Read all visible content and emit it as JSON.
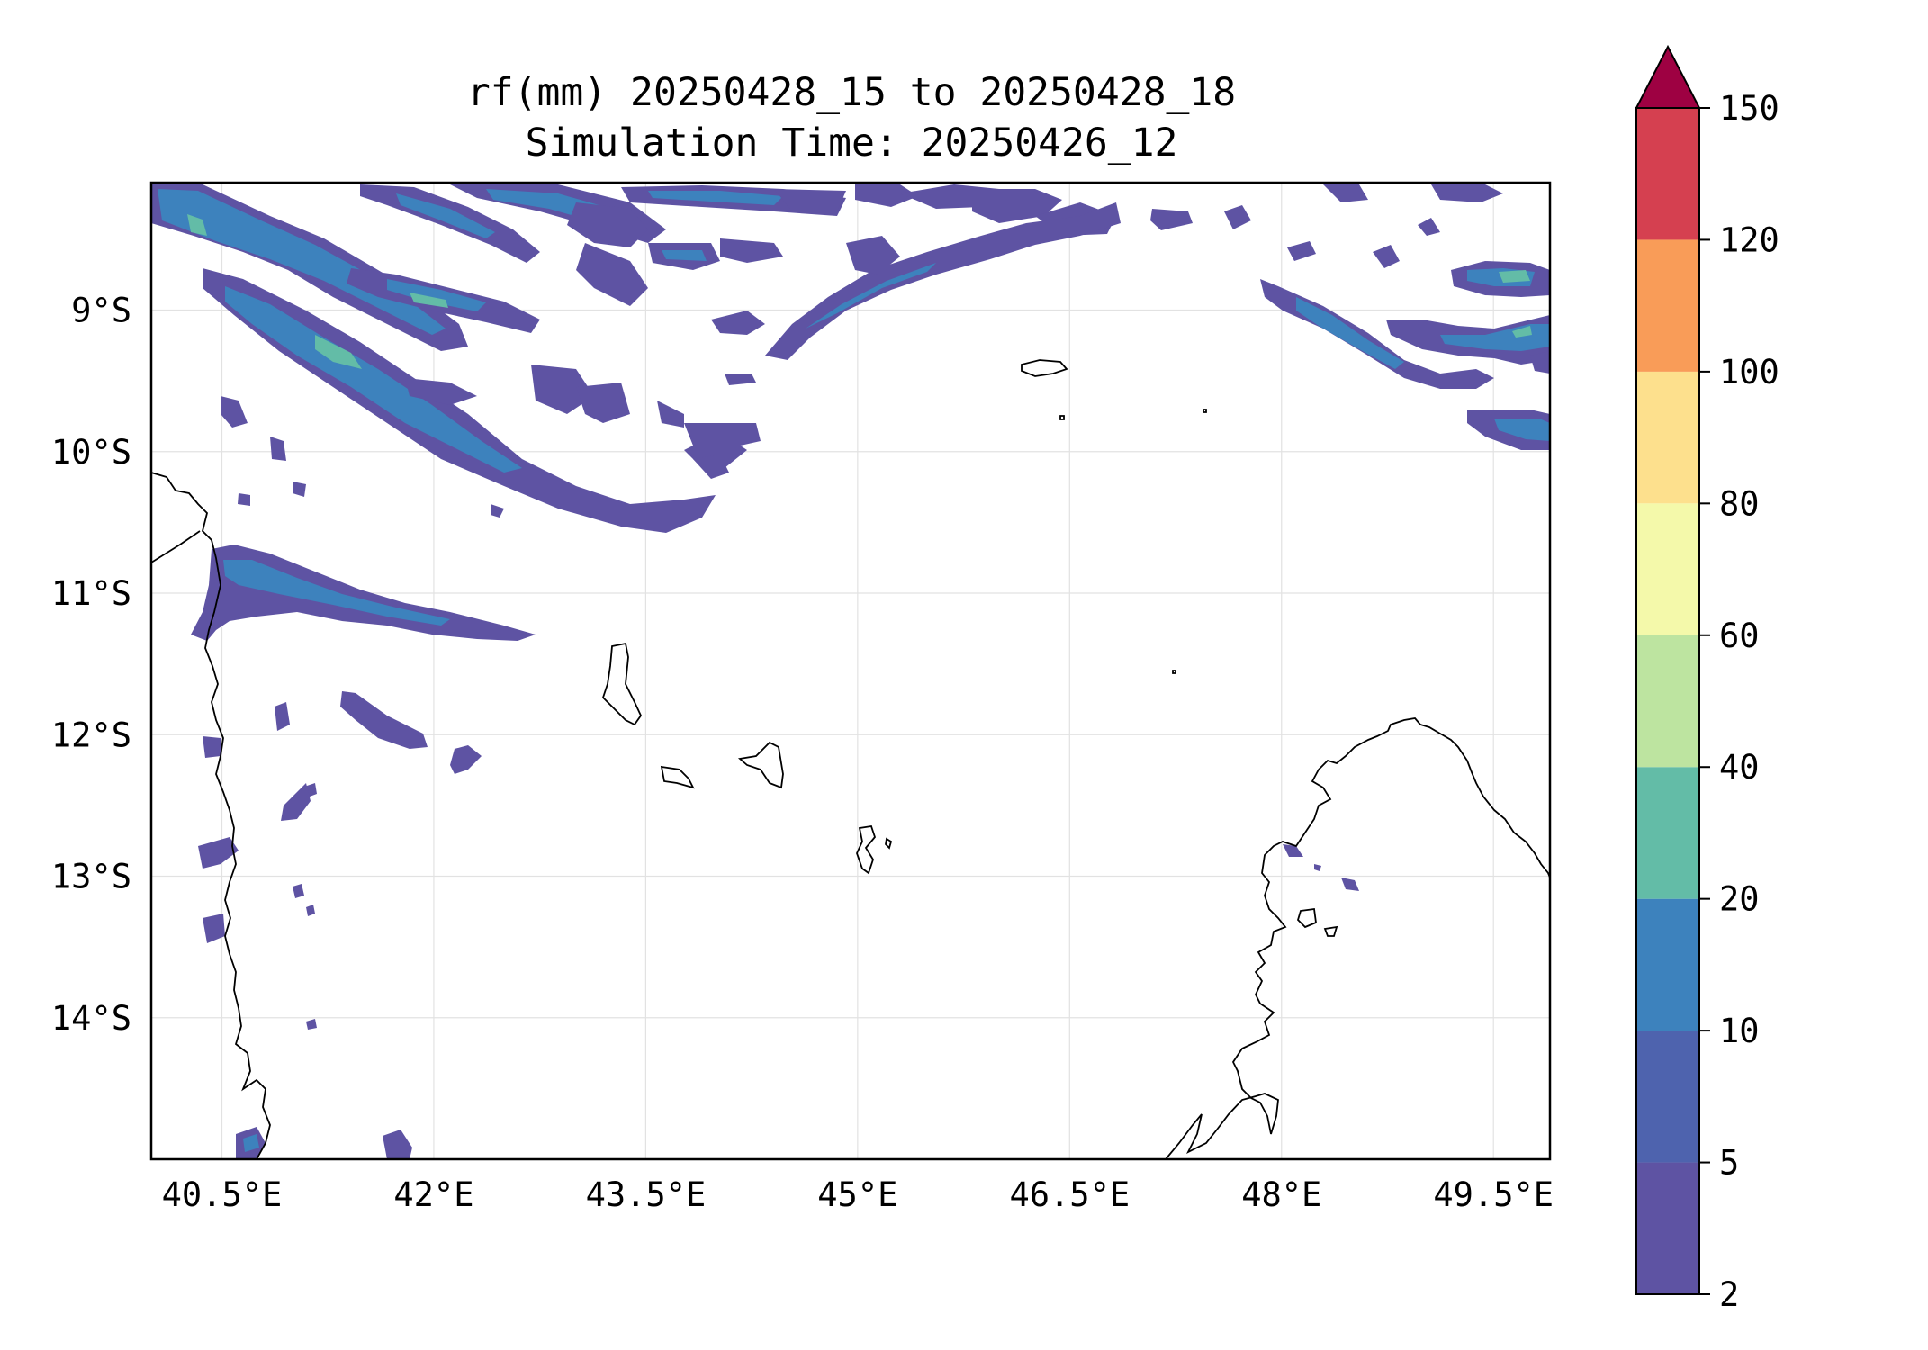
{
  "title": {
    "line1": "rf(mm) 20250428_15 to 20250428_18",
    "line2": "Simulation Time: 20250426_12"
  },
  "map": {
    "lon_range": [
      40.0,
      49.9
    ],
    "lat_range": [
      -15.0,
      -8.1
    ],
    "lon_ticks": [
      {
        "value": 40.5,
        "label": "40.5°E"
      },
      {
        "value": 42.0,
        "label": "42°E"
      },
      {
        "value": 43.5,
        "label": "43.5°E"
      },
      {
        "value": 45.0,
        "label": "45°E"
      },
      {
        "value": 46.5,
        "label": "46.5°E"
      },
      {
        "value": 48.0,
        "label": "48°E"
      },
      {
        "value": 49.5,
        "label": "49.5°E"
      }
    ],
    "lat_ticks": [
      {
        "value": -9,
        "label": "9°S"
      },
      {
        "value": -10,
        "label": "10°S"
      },
      {
        "value": -11,
        "label": "11°S"
      },
      {
        "value": -12,
        "label": "12°S"
      },
      {
        "value": -13,
        "label": "13°S"
      },
      {
        "value": -14,
        "label": "14°S"
      }
    ],
    "grid": true
  },
  "colorbar": {
    "levels": [
      {
        "value": 2,
        "label": "2"
      },
      {
        "value": 5,
        "label": "5"
      },
      {
        "value": 10,
        "label": "10"
      },
      {
        "value": 20,
        "label": "20"
      },
      {
        "value": 40,
        "label": "40"
      },
      {
        "value": 60,
        "label": "60"
      },
      {
        "value": 80,
        "label": "80"
      },
      {
        "value": 100,
        "label": "100"
      },
      {
        "value": 120,
        "label": "120"
      },
      {
        "value": 150,
        "label": "150"
      }
    ],
    "colors": [
      "#5e53a3",
      "#4e63ae",
      "#3d82bd",
      "#63bca7",
      "#bde4a0",
      "#f4f9aa",
      "#fde08d",
      "#f99c58",
      "#d54050"
    ],
    "extend_color": "#9e0142",
    "extend": "max"
  }
}
